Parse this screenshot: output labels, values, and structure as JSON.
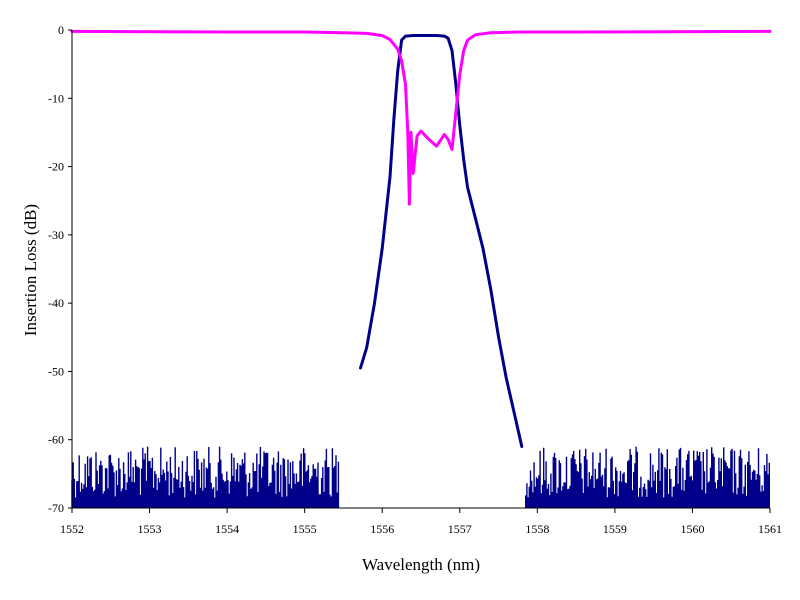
{
  "chart_data": {
    "type": "line",
    "title": "",
    "xlabel": "Wavelength (nm)",
    "ylabel": "Insertion Loss (dB)",
    "xlim": [
      1552,
      1561
    ],
    "ylim": [
      -70,
      0
    ],
    "xticks": [
      "1552",
      "1553",
      "1554",
      "1555",
      "1556",
      "1557",
      "1558",
      "1559",
      "1560",
      "1561"
    ],
    "yticks": [
      "0",
      "-10",
      "-20",
      "-30",
      "-40",
      "-50",
      "-60",
      "-70"
    ],
    "grid": false,
    "legend": "none",
    "series": [
      {
        "color": "#00008B",
        "x": [
          1555.72,
          1555.8,
          1555.9,
          1556.0,
          1556.1,
          1556.15,
          1556.2,
          1556.25,
          1556.3,
          1556.4,
          1556.5,
          1556.6,
          1556.7,
          1556.8,
          1556.85,
          1556.9,
          1556.95,
          1557.0,
          1557.05,
          1557.1,
          1557.2,
          1557.3,
          1557.4,
          1557.5,
          1557.6,
          1557.7,
          1557.8
        ],
        "y": [
          -49.5,
          -46.5,
          -40.0,
          -32.0,
          -21.5,
          -13.0,
          -6.0,
          -1.5,
          -0.9,
          -0.8,
          -0.8,
          -0.8,
          -0.8,
          -0.9,
          -1.2,
          -3.0,
          -8.0,
          -14.0,
          -19.0,
          -23.0,
          -27.5,
          -32.0,
          -38.0,
          -45.0,
          -51.0,
          -56.0,
          -61.0
        ]
      },
      {
        "color": "#FF00FF",
        "x": [
          1552.0,
          1554.0,
          1555.0,
          1555.5,
          1555.8,
          1556.0,
          1556.1,
          1556.2,
          1556.25,
          1556.3,
          1556.33,
          1556.35,
          1556.37,
          1556.4,
          1556.45,
          1556.5,
          1556.6,
          1556.7,
          1556.75,
          1556.8,
          1556.85,
          1556.9,
          1556.95,
          1557.0,
          1557.05,
          1557.1,
          1557.2,
          1557.4,
          1557.8,
          1558.5,
          1561.0
        ],
        "y": [
          -0.2,
          -0.3,
          -0.3,
          -0.4,
          -0.5,
          -0.8,
          -1.4,
          -2.8,
          -4.5,
          -8.0,
          -15.0,
          -25.5,
          -15.0,
          -21.0,
          -15.5,
          -14.8,
          -16.0,
          -17.0,
          -16.2,
          -15.3,
          -16.0,
          -17.5,
          -12.0,
          -6.5,
          -3.0,
          -1.5,
          -0.7,
          -0.4,
          -0.3,
          -0.3,
          -0.2
        ]
      },
      {
        "color": "#00008B",
        "type": "noise-floor",
        "x": [
          1552.0,
          1555.45
        ],
        "y": [
          -70,
          -61
        ]
      },
      {
        "color": "#00008B",
        "type": "noise-floor",
        "x": [
          1557.85,
          1561.0
        ],
        "y": [
          -70,
          -61
        ]
      }
    ]
  }
}
